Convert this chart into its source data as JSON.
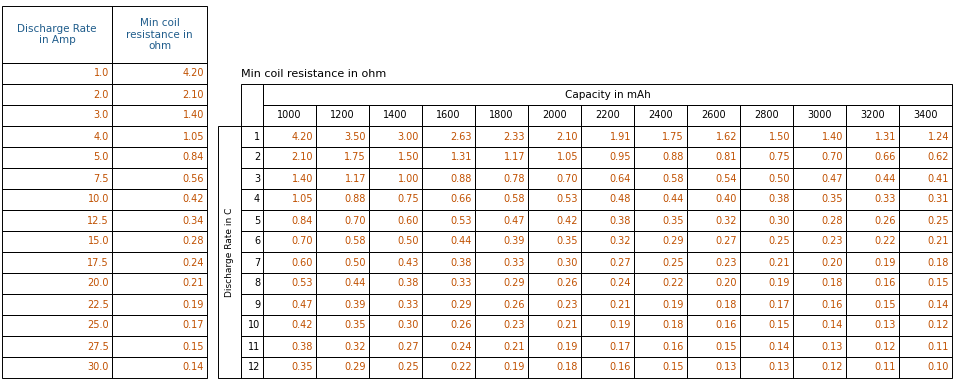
{
  "left_table_rows": [
    [
      "1.0",
      "4.20"
    ],
    [
      "2.0",
      "2.10"
    ],
    [
      "3.0",
      "1.40"
    ],
    [
      "4.0",
      "1.05"
    ],
    [
      "5.0",
      "0.84"
    ],
    [
      "7.5",
      "0.56"
    ],
    [
      "10.0",
      "0.42"
    ],
    [
      "12.5",
      "0.34"
    ],
    [
      "15.0",
      "0.28"
    ],
    [
      "17.5",
      "0.24"
    ],
    [
      "20.0",
      "0.21"
    ],
    [
      "22.5",
      "0.19"
    ],
    [
      "25.0",
      "0.17"
    ],
    [
      "27.5",
      "0.15"
    ],
    [
      "30.0",
      "0.14"
    ]
  ],
  "right_table_title": "Min coil resistance in ohm",
  "right_col_header_title": "Capacity in mAh",
  "right_col_headers": [
    "1000",
    "1200",
    "1400",
    "1600",
    "1800",
    "2000",
    "2200",
    "2400",
    "2600",
    "2800",
    "3000",
    "3200",
    "3400"
  ],
  "right_row_label_header": "Discharge Rate in C",
  "right_row_labels": [
    "1",
    "2",
    "3",
    "4",
    "5",
    "6",
    "7",
    "8",
    "9",
    "10",
    "11",
    "12"
  ],
  "right_table_data": [
    [
      4.2,
      3.5,
      3.0,
      2.63,
      2.33,
      2.1,
      1.91,
      1.75,
      1.62,
      1.5,
      1.4,
      1.31,
      1.24
    ],
    [
      2.1,
      1.75,
      1.5,
      1.31,
      1.17,
      1.05,
      0.95,
      0.88,
      0.81,
      0.75,
      0.7,
      0.66,
      0.62
    ],
    [
      1.4,
      1.17,
      1.0,
      0.88,
      0.78,
      0.7,
      0.64,
      0.58,
      0.54,
      0.5,
      0.47,
      0.44,
      0.41
    ],
    [
      1.05,
      0.88,
      0.75,
      0.66,
      0.58,
      0.53,
      0.48,
      0.44,
      0.4,
      0.38,
      0.35,
      0.33,
      0.31
    ],
    [
      0.84,
      0.7,
      0.6,
      0.53,
      0.47,
      0.42,
      0.38,
      0.35,
      0.32,
      0.3,
      0.28,
      0.26,
      0.25
    ],
    [
      0.7,
      0.58,
      0.5,
      0.44,
      0.39,
      0.35,
      0.32,
      0.29,
      0.27,
      0.25,
      0.23,
      0.22,
      0.21
    ],
    [
      0.6,
      0.5,
      0.43,
      0.38,
      0.33,
      0.3,
      0.27,
      0.25,
      0.23,
      0.21,
      0.2,
      0.19,
      0.18
    ],
    [
      0.53,
      0.44,
      0.38,
      0.33,
      0.29,
      0.26,
      0.24,
      0.22,
      0.2,
      0.19,
      0.18,
      0.16,
      0.15
    ],
    [
      0.47,
      0.39,
      0.33,
      0.29,
      0.26,
      0.23,
      0.21,
      0.19,
      0.18,
      0.17,
      0.16,
      0.15,
      0.14
    ],
    [
      0.42,
      0.35,
      0.3,
      0.26,
      0.23,
      0.21,
      0.19,
      0.18,
      0.16,
      0.15,
      0.14,
      0.13,
      0.12
    ],
    [
      0.38,
      0.32,
      0.27,
      0.24,
      0.21,
      0.19,
      0.17,
      0.16,
      0.15,
      0.14,
      0.13,
      0.12,
      0.11
    ],
    [
      0.35,
      0.29,
      0.25,
      0.22,
      0.19,
      0.18,
      0.16,
      0.15,
      0.13,
      0.13,
      0.12,
      0.11,
      0.1
    ]
  ],
  "text_color": "#C05000",
  "header_text_color": "#1F5C8B",
  "bg_color": "#FFFFFF",
  "font_size": 7.0,
  "header_font_size": 7.5,
  "title_font_size": 8.0,
  "lw": 0.7
}
